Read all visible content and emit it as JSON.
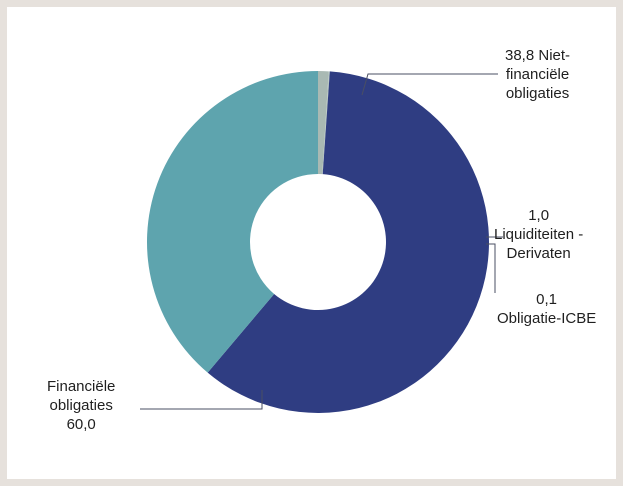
{
  "chart_data": {
    "type": "pie",
    "donut": true,
    "start_angle_deg": 90,
    "direction": "clockwise",
    "slices": [
      {
        "label": "Liquiditeiten - Derivaten",
        "value": 1.0,
        "display_value": "1,0",
        "color": "#a9b9b3"
      },
      {
        "label": "Obligatie-ICBE",
        "value": 0.1,
        "display_value": "0,1",
        "color": "#b6c6c0"
      },
      {
        "label": "Financiële obligaties",
        "value": 60.0,
        "display_value": "60,0",
        "color": "#2f3d82"
      },
      {
        "label": "Niet-financiële obligaties",
        "value": 38.8,
        "display_value": "38,8",
        "color": "#5ea4ae"
      }
    ],
    "labels": {
      "niet_fin": {
        "lines": [
          "38,8  Niet-",
          "financiële",
          "obligaties"
        ]
      },
      "liq": {
        "lines": [
          "1,0",
          "Liquiditeiten -",
          "Derivaten"
        ]
      },
      "icbe": {
        "lines": [
          "0,1",
          "Obligatie-ICBE"
        ]
      },
      "fin": {
        "lines": [
          "Financiële",
          "obligaties",
          "60,0"
        ]
      }
    },
    "legend": "none",
    "grid": false
  },
  "colors": {
    "background": "#e6e1dc",
    "panel": "#ffffff",
    "leader_line": "#4a4f63"
  }
}
